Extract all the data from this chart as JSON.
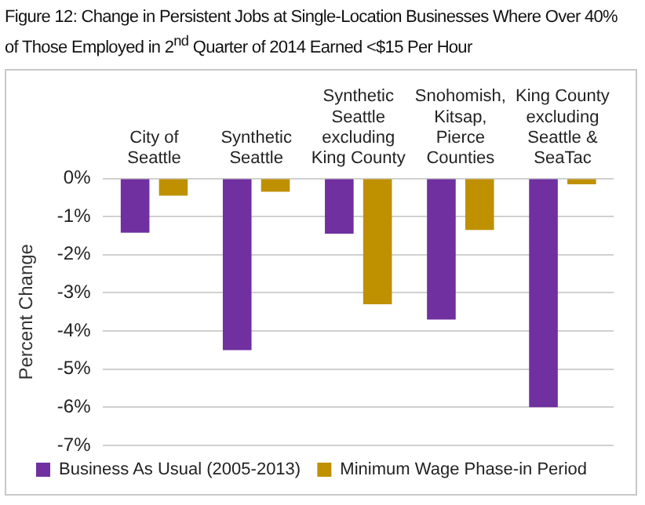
{
  "chart_data": {
    "type": "bar",
    "title": "Figure 12: Change in Persistent Jobs at Single-Location Businesses Where Over 40% of Those  Employed in 2$^{nd}$ Quarter of 2014 Earned <$15 Per Hour",
    "ylabel": "Percent Change",
    "categories": [
      "City of Seattle",
      "Synthetic Seattle",
      "Synthetic Seattle excluding King County",
      "Snohomish, Kitsap, Pierce Counties",
      "King County excluding Seattle & SeaTac"
    ],
    "series": [
      {
        "name": "Business As Usual (2005-2013)",
        "color": "#7030a0",
        "values": [
          -1.42,
          -4.5,
          -1.45,
          -3.7,
          -6.0
        ]
      },
      {
        "name": "Minimum Wage Phase-in Period",
        "color": "#bf9000",
        "values": [
          -0.45,
          -0.35,
          -3.3,
          -1.35,
          -0.15
        ]
      }
    ],
    "ylim": [
      -7,
      0
    ],
    "yticks": [
      {
        "value": -7,
        "label": "-7%"
      },
      {
        "value": -6,
        "label": "-6%"
      },
      {
        "value": -5,
        "label": "-5%"
      },
      {
        "value": -4,
        "label": "-4%"
      },
      {
        "value": -3,
        "label": "-3%"
      },
      {
        "value": -2,
        "label": "-2%"
      },
      {
        "value": -1,
        "label": "-1%"
      },
      {
        "value": 0,
        "label": "0%"
      }
    ],
    "grid": "y",
    "legend": "bottom"
  }
}
